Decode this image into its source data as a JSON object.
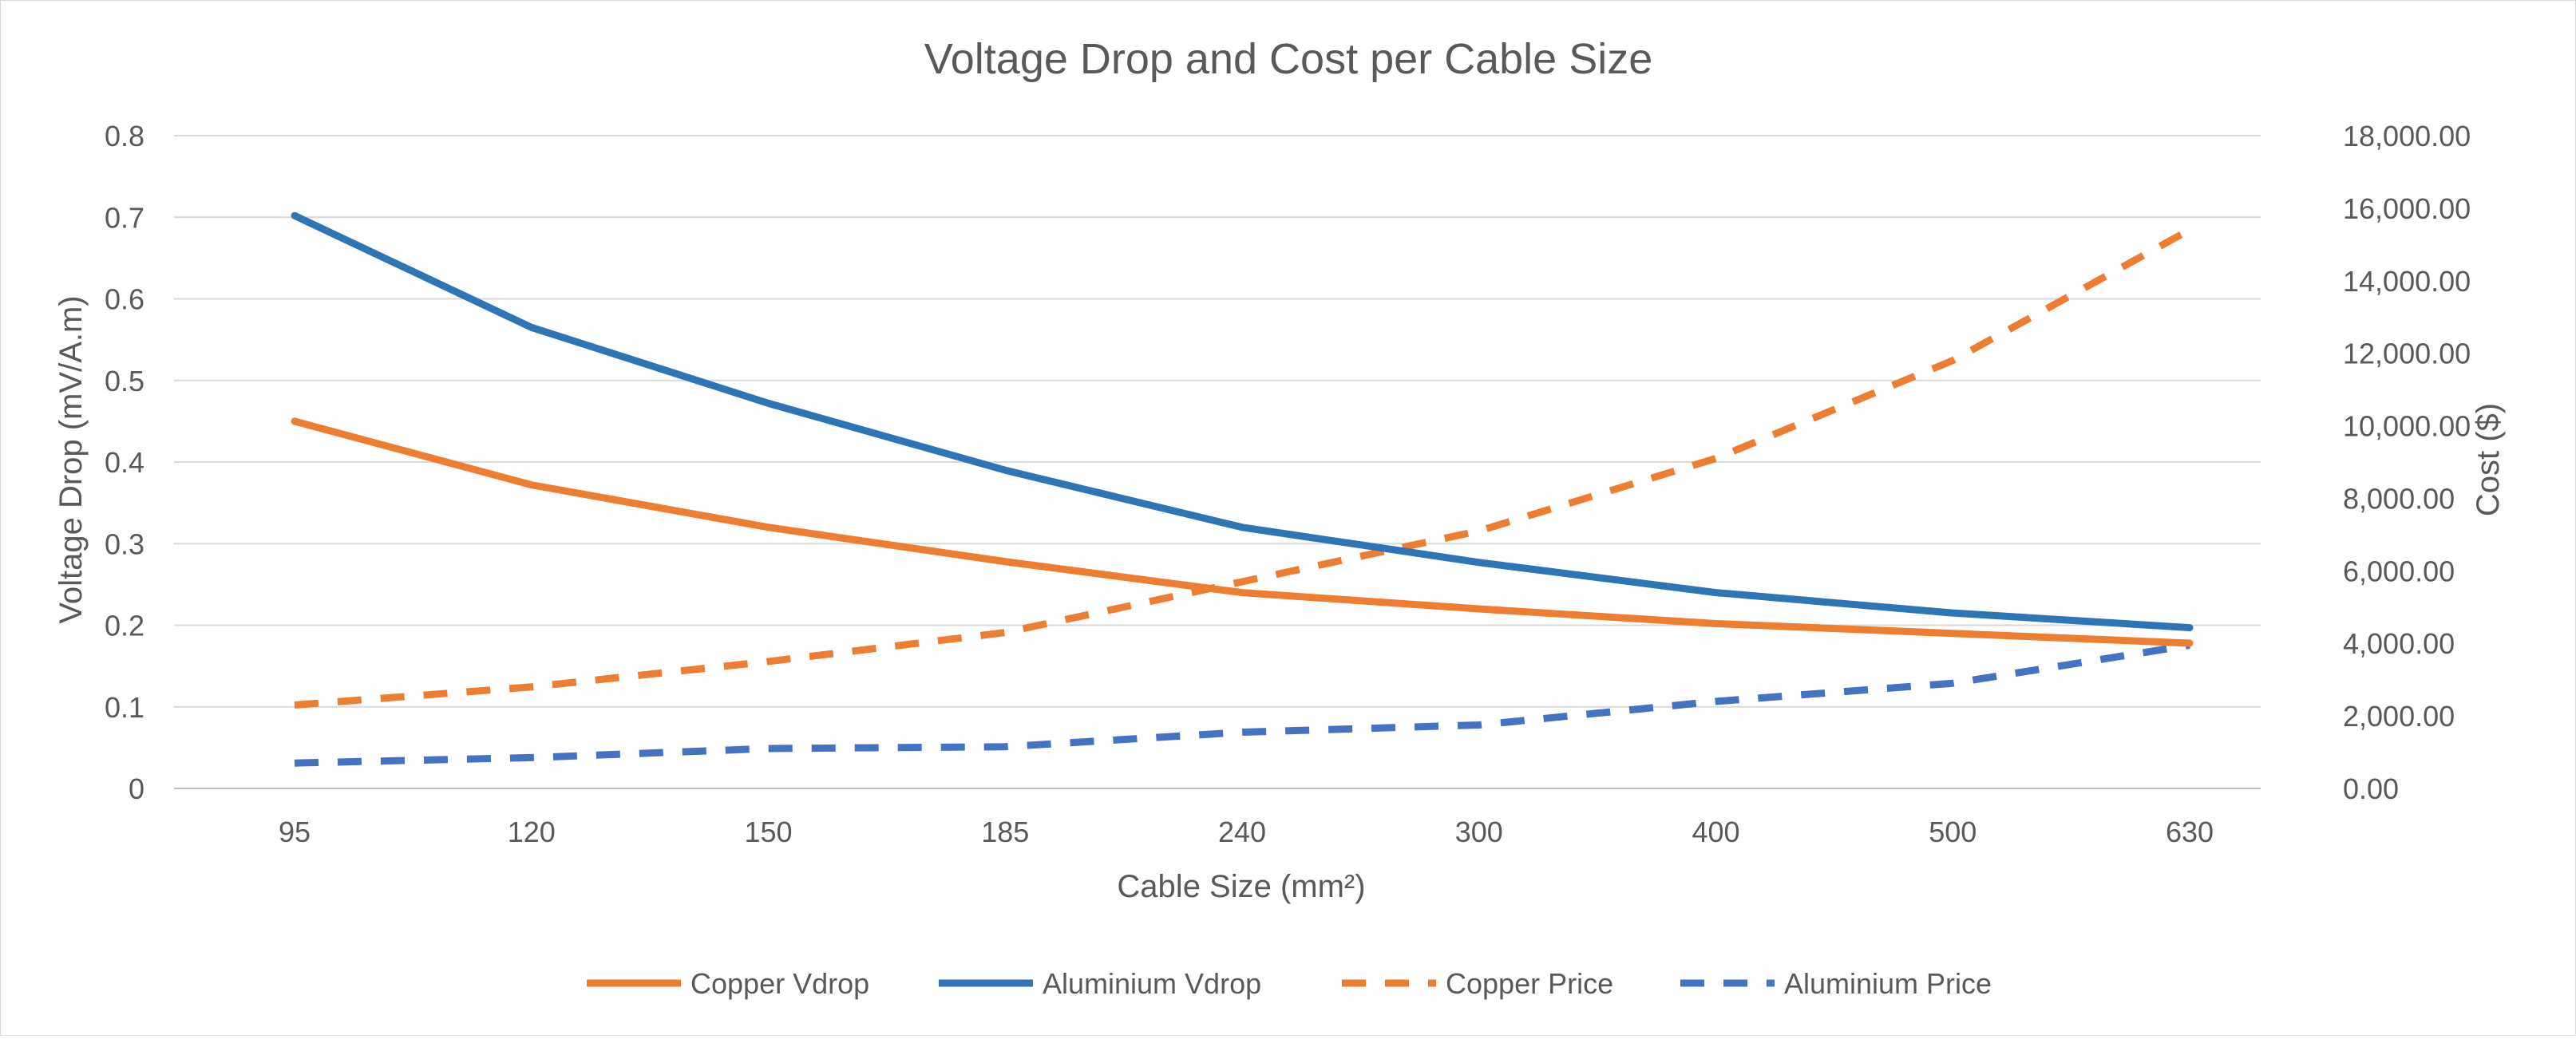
{
  "chart_data": {
    "type": "line",
    "title": "Voltage Drop and Cost per Cable Size",
    "xlabel": "Cable Size (mm²)",
    "ylabel": "Voltage Drop (mV/A.m)",
    "y2label": "Cost ($)",
    "categories": [
      "95",
      "120",
      "150",
      "185",
      "240",
      "300",
      "400",
      "500",
      "630"
    ],
    "ylim": [
      0,
      0.8
    ],
    "y_ticks": [
      0,
      0.1,
      0.2,
      0.3,
      0.4,
      0.5,
      0.6,
      0.7,
      0.8
    ],
    "y_tick_labels": [
      "0",
      "0.1",
      "0.2",
      "0.3",
      "0.4",
      "0.5",
      "0.6",
      "0.7",
      "0.8"
    ],
    "y2lim": [
      0,
      18000
    ],
    "y2_ticks": [
      0,
      2000,
      4000,
      6000,
      8000,
      10000,
      12000,
      14000,
      16000,
      18000
    ],
    "y2_tick_labels": [
      "0.00",
      "2,000.00",
      "4,000.00",
      "6,000.00",
      "8,000.00",
      "10,000.00",
      "12,000.00",
      "14,000.00",
      "16,000.00",
      "18,000.00"
    ],
    "grid": true,
    "legend_position": "bottom",
    "series": [
      {
        "name": "Copper Vdrop",
        "axis": "left",
        "style": "solid",
        "color": "#ED7D31",
        "values": [
          0.45,
          0.372,
          0.32,
          0.278,
          0.24,
          0.22,
          0.202,
          0.19,
          0.178
        ]
      },
      {
        "name": "Aluminium Vdrop",
        "axis": "left",
        "style": "solid",
        "color": "#2E75B6",
        "values": [
          0.702,
          0.565,
          0.472,
          0.39,
          0.32,
          0.277,
          0.24,
          0.215,
          0.197
        ]
      },
      {
        "name": "Copper Price",
        "axis": "right",
        "style": "dashed",
        "color": "#ED7D31",
        "values": [
          2300,
          2800,
          3500,
          4300,
          5700,
          7100,
          9100,
          11800,
          15400
        ]
      },
      {
        "name": "Aluminium Price",
        "axis": "right",
        "style": "dashed",
        "color": "#4472C4",
        "values": [
          700,
          850,
          1100,
          1150,
          1550,
          1750,
          2400,
          2900,
          3950
        ]
      }
    ]
  }
}
